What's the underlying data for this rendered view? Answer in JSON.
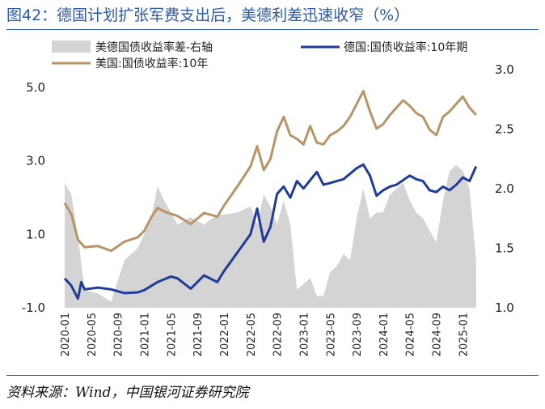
{
  "figure": {
    "title": "图42：德国计划扩张军费支出后，美德利差迅速收窄（%）",
    "source": "资料来源：Wind，中国银河证券研究院"
  },
  "chart_data": {
    "type": "line",
    "legend": [
      "美德国债收益率差-右轴",
      "德国:国债收益率:10年期",
      "美国:国债收益率:10年"
    ],
    "legend_placement": "top",
    "colors": {
      "spread": "#d4d4d4",
      "germany": "#1f3c98",
      "us": "#b99467"
    },
    "x_ticks": [
      "2020-01",
      "2020-05",
      "2020-09",
      "2021-01",
      "2021-05",
      "2021-09",
      "2022-01",
      "2022-05",
      "2022-09",
      "2023-01",
      "2023-05",
      "2023-09",
      "2024-01",
      "2024-05",
      "2024-09",
      "2025-01"
    ],
    "x_range": [
      "2020-01",
      "2025-03"
    ],
    "y_left": {
      "ticks": [
        "5.0",
        "3.0",
        "1.0",
        "-1.0"
      ],
      "range": [
        -1.0,
        5.0
      ]
    },
    "y_right": {
      "ticks": [
        "3.0",
        "2.5",
        "2.0",
        "1.5",
        "1.0"
      ],
      "range": [
        1.0,
        3.0
      ]
    },
    "grid": false,
    "series": [
      {
        "name": "美国:国债收益率:10年",
        "axis": "left",
        "points": [
          [
            "2020-01",
            1.85
          ],
          [
            "2020-02",
            1.55
          ],
          [
            "2020-03",
            0.85
          ],
          [
            "2020-04",
            0.65
          ],
          [
            "2020-06",
            0.68
          ],
          [
            "2020-08",
            0.55
          ],
          [
            "2020-10",
            0.8
          ],
          [
            "2020-12",
            0.92
          ],
          [
            "2021-01",
            1.1
          ],
          [
            "2021-02",
            1.45
          ],
          [
            "2021-03",
            1.72
          ],
          [
            "2021-04",
            1.62
          ],
          [
            "2021-06",
            1.5
          ],
          [
            "2021-08",
            1.28
          ],
          [
            "2021-10",
            1.58
          ],
          [
            "2021-12",
            1.48
          ],
          [
            "2022-01",
            1.78
          ],
          [
            "2022-03",
            2.3
          ],
          [
            "2022-05",
            2.85
          ],
          [
            "2022-06",
            3.4
          ],
          [
            "2022-07",
            2.75
          ],
          [
            "2022-08",
            3.05
          ],
          [
            "2022-09",
            3.8
          ],
          [
            "2022-10",
            4.2
          ],
          [
            "2022-11",
            3.7
          ],
          [
            "2022-12",
            3.6
          ],
          [
            "2023-01",
            3.45
          ],
          [
            "2023-02",
            3.95
          ],
          [
            "2023-03",
            3.5
          ],
          [
            "2023-04",
            3.45
          ],
          [
            "2023-05",
            3.7
          ],
          [
            "2023-06",
            3.8
          ],
          [
            "2023-07",
            3.95
          ],
          [
            "2023-08",
            4.2
          ],
          [
            "2023-09",
            4.55
          ],
          [
            "2023-10",
            4.9
          ],
          [
            "2023-11",
            4.35
          ],
          [
            "2023-12",
            3.88
          ],
          [
            "2024-01",
            4.0
          ],
          [
            "2024-02",
            4.25
          ],
          [
            "2024-04",
            4.65
          ],
          [
            "2024-05",
            4.5
          ],
          [
            "2024-06",
            4.3
          ],
          [
            "2024-07",
            4.2
          ],
          [
            "2024-08",
            3.85
          ],
          [
            "2024-09",
            3.7
          ],
          [
            "2024-10",
            4.2
          ],
          [
            "2024-11",
            4.35
          ],
          [
            "2024-12",
            4.55
          ],
          [
            "2025-01",
            4.75
          ],
          [
            "2025-02",
            4.45
          ],
          [
            "2025-03",
            4.25
          ]
        ]
      },
      {
        "name": "德国:国债收益率:10年期",
        "axis": "left",
        "points": [
          [
            "2020-01",
            -0.2
          ],
          [
            "2020-02",
            -0.4
          ],
          [
            "2020-03",
            -0.75
          ],
          [
            "2020-03",
            -0.3
          ],
          [
            "2020-04",
            -0.5
          ],
          [
            "2020-06",
            -0.45
          ],
          [
            "2020-08",
            -0.5
          ],
          [
            "2020-10",
            -0.6
          ],
          [
            "2020-12",
            -0.58
          ],
          [
            "2021-01",
            -0.52
          ],
          [
            "2021-03",
            -0.3
          ],
          [
            "2021-05",
            -0.15
          ],
          [
            "2021-06",
            -0.2
          ],
          [
            "2021-08",
            -0.48
          ],
          [
            "2021-10",
            -0.12
          ],
          [
            "2021-12",
            -0.3
          ],
          [
            "2022-01",
            0.0
          ],
          [
            "2022-03",
            0.5
          ],
          [
            "2022-05",
            1.0
          ],
          [
            "2022-06",
            1.7
          ],
          [
            "2022-07",
            0.8
          ],
          [
            "2022-08",
            1.2
          ],
          [
            "2022-09",
            2.1
          ],
          [
            "2022-10",
            2.3
          ],
          [
            "2022-11",
            2.0
          ],
          [
            "2022-12",
            2.45
          ],
          [
            "2023-01",
            2.25
          ],
          [
            "2023-03",
            2.7
          ],
          [
            "2023-04",
            2.35
          ],
          [
            "2023-05",
            2.4
          ],
          [
            "2023-06",
            2.45
          ],
          [
            "2023-07",
            2.5
          ],
          [
            "2023-09",
            2.8
          ],
          [
            "2023-10",
            2.9
          ],
          [
            "2023-11",
            2.6
          ],
          [
            "2023-12",
            2.05
          ],
          [
            "2024-01",
            2.2
          ],
          [
            "2024-02",
            2.3
          ],
          [
            "2024-03",
            2.35
          ],
          [
            "2024-05",
            2.6
          ],
          [
            "2024-06",
            2.5
          ],
          [
            "2024-07",
            2.45
          ],
          [
            "2024-08",
            2.2
          ],
          [
            "2024-09",
            2.15
          ],
          [
            "2024-10",
            2.3
          ],
          [
            "2024-11",
            2.2
          ],
          [
            "2024-12",
            2.35
          ],
          [
            "2025-01",
            2.55
          ],
          [
            "2025-02",
            2.45
          ],
          [
            "2025-03",
            2.85
          ]
        ]
      },
      {
        "name": "美德国债收益率差-右轴",
        "axis": "right",
        "points": [
          [
            "2020-01",
            2.05
          ],
          [
            "2020-02",
            1.95
          ],
          [
            "2020-03",
            1.6
          ],
          [
            "2020-04",
            1.15
          ],
          [
            "2020-06",
            1.12
          ],
          [
            "2020-08",
            1.05
          ],
          [
            "2020-10",
            1.4
          ],
          [
            "2020-12",
            1.5
          ],
          [
            "2021-01",
            1.62
          ],
          [
            "2021-02",
            1.75
          ],
          [
            "2021-03",
            2.02
          ],
          [
            "2021-04",
            1.9
          ],
          [
            "2021-06",
            1.7
          ],
          [
            "2021-08",
            1.76
          ],
          [
            "2021-10",
            1.7
          ],
          [
            "2021-12",
            1.78
          ],
          [
            "2022-01",
            1.78
          ],
          [
            "2022-03",
            1.8
          ],
          [
            "2022-05",
            1.85
          ],
          [
            "2022-06",
            1.7
          ],
          [
            "2022-07",
            1.95
          ],
          [
            "2022-08",
            1.85
          ],
          [
            "2022-09",
            1.7
          ],
          [
            "2022-10",
            1.9
          ],
          [
            "2022-11",
            1.7
          ],
          [
            "2022-12",
            1.15
          ],
          [
            "2023-01",
            1.2
          ],
          [
            "2023-02",
            1.25
          ],
          [
            "2023-03",
            1.1
          ],
          [
            "2023-04",
            1.1
          ],
          [
            "2023-05",
            1.3
          ],
          [
            "2023-06",
            1.35
          ],
          [
            "2023-07",
            1.45
          ],
          [
            "2023-08",
            1.4
          ],
          [
            "2023-09",
            1.75
          ],
          [
            "2023-10",
            2.0
          ],
          [
            "2023-11",
            1.75
          ],
          [
            "2023-12",
            1.8
          ],
          [
            "2024-01",
            1.8
          ],
          [
            "2024-02",
            1.95
          ],
          [
            "2024-04",
            2.05
          ],
          [
            "2024-05",
            1.9
          ],
          [
            "2024-06",
            1.8
          ],
          [
            "2024-07",
            1.75
          ],
          [
            "2024-08",
            1.65
          ],
          [
            "2024-09",
            1.55
          ],
          [
            "2024-10",
            1.9
          ],
          [
            "2024-11",
            2.15
          ],
          [
            "2024-12",
            2.2
          ],
          [
            "2025-01",
            2.15
          ],
          [
            "2025-02",
            2.0
          ],
          [
            "2025-03",
            1.4
          ]
        ]
      }
    ]
  }
}
